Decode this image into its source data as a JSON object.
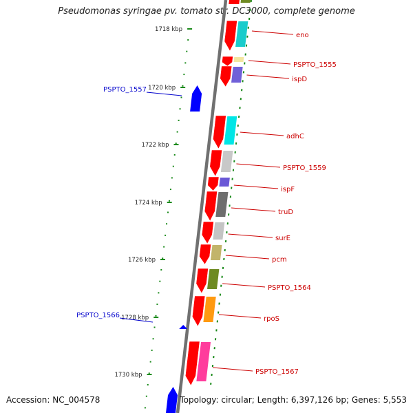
{
  "title": "Pseudomonas syringae pv. tomato str. DC3000, complete genome",
  "footer": {
    "accession": "Accession: NC_004578",
    "topology": "Topology: circular; Length: 6,397,126 bp; Genes: 5,553"
  },
  "ruler": {
    "ticks": [
      "1718 kbp",
      "1720 kbp",
      "1722 kbp",
      "1724 kbp",
      "1726 kbp",
      "1728 kbp",
      "1730 kbp"
    ]
  },
  "genes": {
    "forward": [
      "PSPTO_1557",
      "PSPTO_1566"
    ],
    "reverse": [
      "eno",
      "PSPTO_1555",
      "ispD",
      "adhC",
      "PSPTO_1559",
      "ispF",
      "truD",
      "surE",
      "pcm",
      "PSPTO_1564",
      "rpoS",
      "PSPTO_1567"
    ]
  },
  "colors": {
    "forward_gene": "#0000ff",
    "reverse_gene": "#ff0000",
    "forward_label": "#0000cc",
    "reverse_label": "#cc0000",
    "backbone": "#808080",
    "ruler": "#1a8a1a",
    "cog_eno": "#19cccc",
    "cog_PSPTO_1555": "#f3e6a0",
    "cog_ispD": "#7060d8",
    "cog_adhC": "#00e6e6",
    "cog_PSPTO_1559": "#c8c8c8",
    "cog_ispF": "#6a58d6",
    "cog_truD": "#6e6e6e",
    "cog_surE": "#c4c4c4",
    "cog_pcm": "#c2b46a",
    "cog_PSPTO_1564": "#6e8a22",
    "cog_rpoS": "#ff9a10",
    "cog_PSPTO_1567": "#ff3c9c"
  }
}
